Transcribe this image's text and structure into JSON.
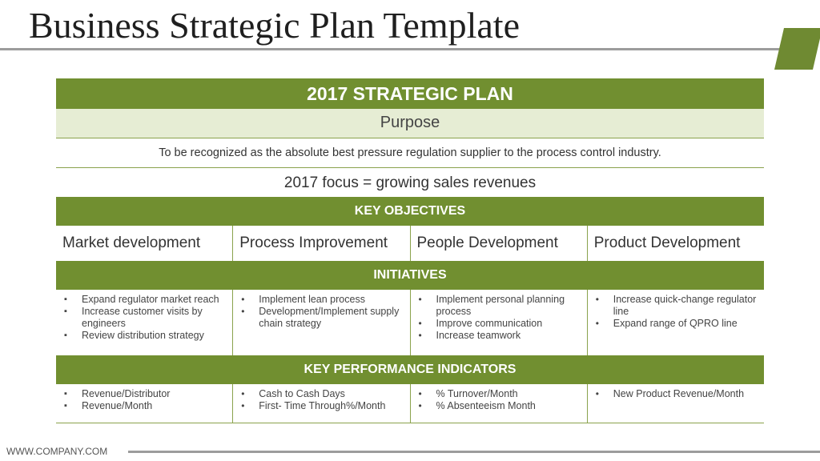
{
  "slide": {
    "title": "Business Strategic Plan Template",
    "footer": "WWW.COMPANY.COM",
    "colors": {
      "accent": "#718f30",
      "light": "#e6edd4",
      "rule": "#9c9c9c"
    }
  },
  "plan": {
    "header": "2017 STRATEGIC PLAN",
    "purpose_label": "Purpose",
    "mission": "To be recognized as the absolute best pressure regulation supplier to the process control industry.",
    "focus": "2017 focus = growing sales revenues",
    "objectives_header": "KEY OBJECTIVES",
    "objectives": [
      "Market development",
      "Process Improvement",
      "People Development",
      "Product Development"
    ],
    "initiatives_header": "INITIATIVES",
    "initiatives": [
      [
        "Expand regulator market reach",
        "Increase customer visits by engineers",
        "Review distribution strategy"
      ],
      [
        "Implement lean process",
        "Development/Implement supply chain strategy"
      ],
      [
        "Implement personal planning process",
        "Improve communication",
        "Increase teamwork"
      ],
      [
        "Increase quick-change regulator line",
        "Expand range of QPRO line"
      ]
    ],
    "kpi_header": "KEY PERFORMANCE INDICATORS",
    "kpis": [
      [
        "Revenue/Distributor",
        "Revenue/Month"
      ],
      [
        "Cash to Cash Days",
        "First- Time Through%/Month"
      ],
      [
        "% Turnover/Month",
        "% Absenteeism Month"
      ],
      [
        "New Product Revenue/Month"
      ]
    ]
  }
}
